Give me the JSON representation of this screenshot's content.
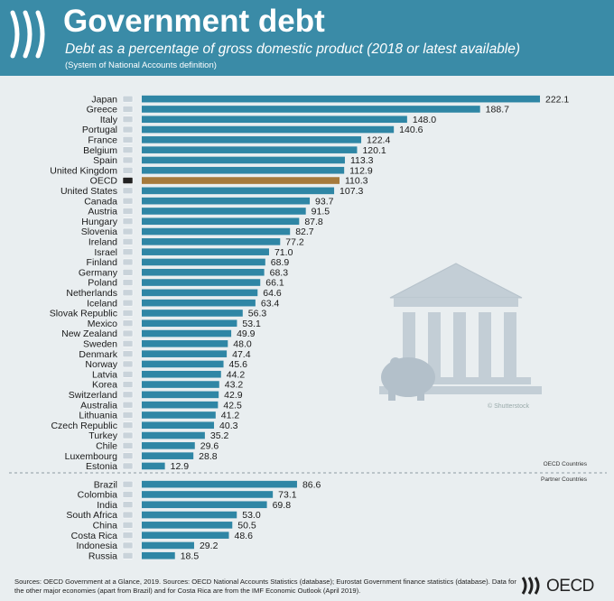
{
  "header": {
    "title": "Government debt",
    "subtitle": "Debt as a percentage of gross domestic product (2018 or latest available)",
    "note": "(System of National Accounts definition)"
  },
  "chart_data": {
    "type": "bar",
    "orientation": "horizontal",
    "groups": [
      {
        "name": "OECD Countries",
        "categories": [
          "Japan",
          "Greece",
          "Italy",
          "Portugal",
          "France",
          "Belgium",
          "Spain",
          "United Kingdom",
          "OECD",
          "United States",
          "Canada",
          "Austria",
          "Hungary",
          "Slovenia",
          "Ireland",
          "Israel",
          "Finland",
          "Germany",
          "Poland",
          "Netherlands",
          "Iceland",
          "Slovak Republic",
          "Mexico",
          "New Zealand",
          "Sweden",
          "Denmark",
          "Norway",
          "Latvia",
          "Korea",
          "Switzerland",
          "Australia",
          "Lithuania",
          "Czech Republic",
          "Turkey",
          "Chile",
          "Luxembourg",
          "Estonia"
        ],
        "values": [
          222.1,
          188.7,
          148.0,
          140.6,
          122.4,
          120.1,
          113.3,
          112.9,
          110.3,
          107.3,
          93.7,
          91.5,
          87.8,
          82.7,
          77.2,
          71.0,
          68.9,
          68.3,
          66.1,
          64.6,
          63.4,
          56.3,
          53.1,
          49.9,
          48.0,
          47.4,
          45.6,
          44.2,
          43.2,
          42.9,
          42.5,
          41.2,
          40.3,
          35.2,
          29.6,
          28.8,
          12.9
        ],
        "value_labels": [
          "222.1",
          "188.7",
          "148.0",
          "140.6",
          "122.4",
          "120.1",
          "113.3",
          "112.9",
          "110.3",
          "107.3",
          "93.7",
          "91.5",
          "87.8",
          "82.7",
          "77.2",
          "71.0",
          "68.9",
          "68.3",
          "66.1",
          "64.6",
          "63.4",
          "56.3",
          "53.1",
          "49.9",
          "48.0",
          "47.4",
          "45.6",
          "44.2",
          "43.2",
          "42.9",
          "42.5",
          "41.2",
          "40.3",
          "35.2",
          "29.6",
          "28.8",
          "12.9"
        ],
        "highlight": "OECD"
      },
      {
        "name": "Partner Countries",
        "categories": [
          "Brazil",
          "Colombia",
          "India",
          "South Africa",
          "China",
          "Costa Rica",
          "Indonesia",
          "Russia"
        ],
        "values": [
          86.6,
          73.1,
          69.8,
          53.0,
          50.5,
          48.6,
          29.2,
          18.5
        ],
        "value_labels": [
          "86.6",
          "73.1",
          "69.8",
          "53.0",
          "50.5",
          "48.6",
          "29.2",
          "18.5"
        ]
      }
    ],
    "colors": {
      "bar": "#2f86a5",
      "highlight": "#a67a3c",
      "header": "#3a8ba7"
    }
  },
  "footer": {
    "sources": "Sources: OECD Government at a Glance, 2019. Sources: OECD National Accounts Statistics (database); Eurostat Government finance statistics (database). Data for the other major economies (apart from Brazil) and for Costa Rica are from the IMF Economic Outlook (April 2019).",
    "logo_text": "OECD"
  },
  "illustration": {
    "credit": "© Shutterstock",
    "icon": "bank-piggy-icon"
  }
}
